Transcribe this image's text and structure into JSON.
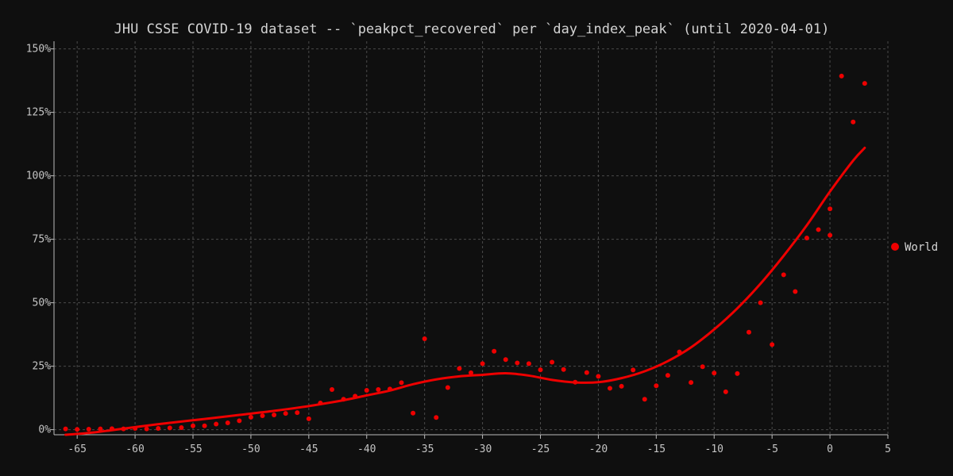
{
  "chart_data": {
    "type": "scatter",
    "title": "JHU CSSE COVID-19 dataset -- `peakpct_recovered` per `day_index_peak` (until 2020-04-01)",
    "xlabel": "",
    "ylabel": "",
    "xlim": [
      -67,
      5
    ],
    "ylim": [
      -2,
      153
    ],
    "x_ticks": [
      -65,
      -60,
      -55,
      -50,
      -45,
      -40,
      -35,
      -30,
      -25,
      -20,
      -15,
      -10,
      -5,
      0,
      5
    ],
    "y_ticks": [
      0,
      25,
      50,
      75,
      100,
      125,
      150
    ],
    "y_tick_suffix": "%",
    "grid": true,
    "legend_position": "right",
    "series": [
      {
        "name": "World",
        "color": "#ee0000",
        "points": [
          [
            -66,
            0.3
          ],
          [
            -65,
            0.1
          ],
          [
            -64,
            0.2
          ],
          [
            -63,
            0.3
          ],
          [
            -62,
            0.4
          ],
          [
            -61,
            0.3
          ],
          [
            -60,
            0.5
          ],
          [
            -59,
            0.3
          ],
          [
            -58,
            0.5
          ],
          [
            -57,
            0.7
          ],
          [
            -56,
            0.8
          ],
          [
            -55,
            1.5
          ],
          [
            -54,
            1.5
          ],
          [
            -53,
            2.2
          ],
          [
            -52,
            2.7
          ],
          [
            -51,
            3.5
          ],
          [
            -50,
            4.9
          ],
          [
            -49,
            5.5
          ],
          [
            -48,
            5.8
          ],
          [
            -47,
            6.4
          ],
          [
            -46,
            6.7
          ],
          [
            -45,
            4.3
          ],
          [
            -44,
            10.5
          ],
          [
            -43,
            15.8
          ],
          [
            -42,
            12.0
          ],
          [
            -41,
            13.2
          ],
          [
            -40,
            15.5
          ],
          [
            -39,
            15.8
          ],
          [
            -38,
            16.0
          ],
          [
            -37,
            18.5
          ],
          [
            -36,
            6.5
          ],
          [
            -35,
            35.8
          ],
          [
            -34,
            4.8
          ],
          [
            -33,
            16.6
          ],
          [
            -32,
            24.1
          ],
          [
            -31,
            22.4
          ],
          [
            -30,
            26.0
          ],
          [
            -29,
            30.9
          ],
          [
            -28,
            27.6
          ],
          [
            -27,
            26.3
          ],
          [
            -26,
            26.0
          ],
          [
            -25,
            23.6
          ],
          [
            -24,
            26.6
          ],
          [
            -23,
            23.7
          ],
          [
            -22,
            18.7
          ],
          [
            -21,
            22.5
          ],
          [
            -20,
            21.0
          ],
          [
            -19,
            16.3
          ],
          [
            -18,
            17.1
          ],
          [
            -17,
            23.5
          ],
          [
            -16,
            12.0
          ],
          [
            -15,
            17.3
          ],
          [
            -14,
            21.4
          ],
          [
            -13,
            30.6
          ],
          [
            -12,
            18.6
          ],
          [
            -11,
            24.8
          ],
          [
            -10,
            22.3
          ],
          [
            -9,
            14.9
          ],
          [
            -8,
            22.1
          ],
          [
            -7,
            38.4
          ],
          [
            -6,
            50.0
          ],
          [
            -5,
            33.5
          ],
          [
            -4,
            61.0
          ],
          [
            -3,
            54.4
          ],
          [
            -2,
            75.5
          ],
          [
            -1,
            78.8
          ],
          [
            0,
            87.0
          ],
          [
            0,
            76.6
          ],
          [
            1,
            139.3
          ],
          [
            2,
            121.2
          ],
          [
            3,
            136.4
          ]
        ],
        "trend": [
          [
            -66,
            -2.0
          ],
          [
            -64,
            -1.3
          ],
          [
            -62,
            -0.2
          ],
          [
            -60,
            1.0
          ],
          [
            -57,
            2.7
          ],
          [
            -54,
            4.2
          ],
          [
            -51,
            5.8
          ],
          [
            -48,
            7.4
          ],
          [
            -45,
            9.3
          ],
          [
            -42,
            11.6
          ],
          [
            -40,
            13.5
          ],
          [
            -38,
            15.4
          ],
          [
            -36,
            17.9
          ],
          [
            -34,
            19.8
          ],
          [
            -32,
            21.0
          ],
          [
            -30,
            21.6
          ],
          [
            -28,
            22.2
          ],
          [
            -26,
            21.3
          ],
          [
            -24,
            19.6
          ],
          [
            -22,
            18.6
          ],
          [
            -20,
            18.7
          ],
          [
            -18,
            20.3
          ],
          [
            -16,
            23.0
          ],
          [
            -14,
            27.0
          ],
          [
            -12,
            32.4
          ],
          [
            -10,
            39.5
          ],
          [
            -8,
            47.8
          ],
          [
            -6,
            57.5
          ],
          [
            -4,
            68.5
          ],
          [
            -2,
            80.5
          ],
          [
            0,
            93.8
          ],
          [
            2,
            106.0
          ],
          [
            3,
            111.0
          ]
        ]
      }
    ]
  }
}
